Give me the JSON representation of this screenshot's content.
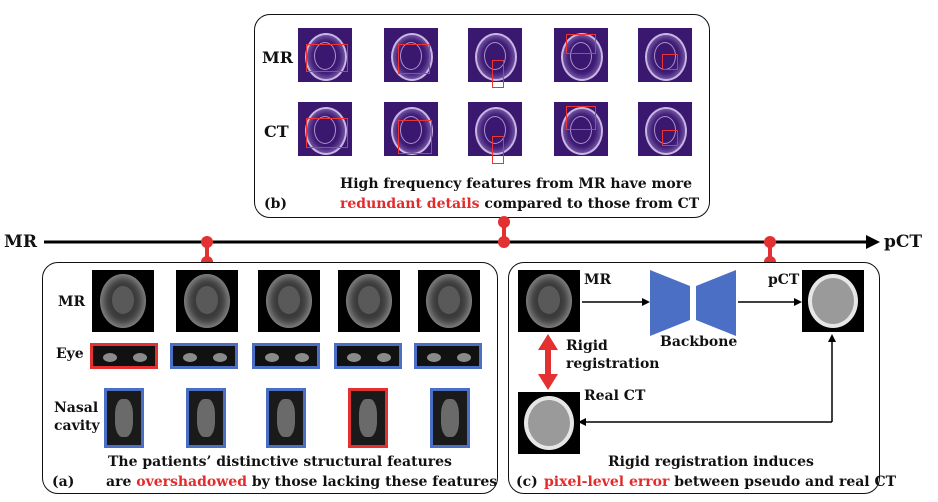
{
  "axis": {
    "left_label": "MR",
    "right_label": "pCT"
  },
  "panel_b": {
    "row_labels": [
      "MR",
      "CT"
    ],
    "tag": "(b)",
    "caption_line1": "High frequency features from MR have more",
    "caption_highlight": "redundant details",
    "caption_rest": " compared to those from CT"
  },
  "panel_a": {
    "row_labels": {
      "mr": "MR",
      "eye": "Eye",
      "nasal1": "Nasal",
      "nasal2": "cavity"
    },
    "tag": "(a)",
    "caption_line1": "The patients’ distinctive structural features",
    "caption_pre": "are ",
    "caption_highlight": "overshadowed",
    "caption_post": " by those lacking these features"
  },
  "panel_c": {
    "mr_label": "MR",
    "pct_label": "pCT",
    "backbone_label": "Backbone",
    "rigid1": "Rigid",
    "rigid2": "registration",
    "realct_label": "Real CT",
    "tag": "(c)",
    "caption_line1": "Rigid registration induces",
    "caption_highlight": "pixel-level error",
    "caption_post": " between pseudo and real CT"
  },
  "colors": {
    "highlight": "#e32b2b",
    "selected_border": "#e33030",
    "normal_border": "#4a6fc4",
    "backbone": "#4a6fc4"
  }
}
